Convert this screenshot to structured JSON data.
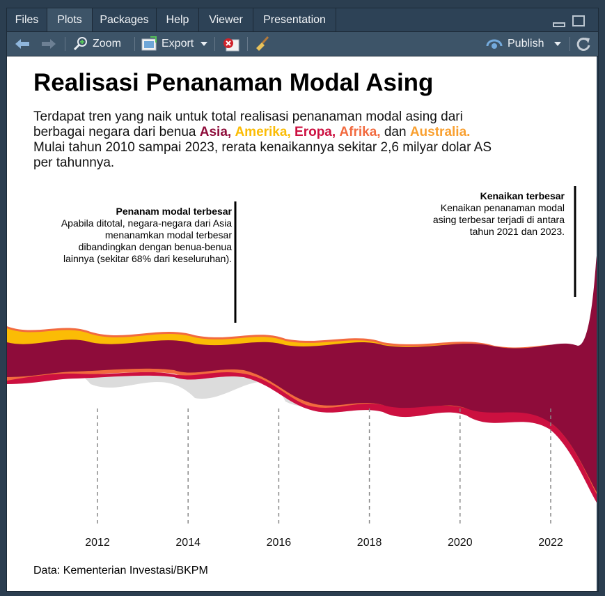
{
  "tabs": [
    "Files",
    "Plots",
    "Packages",
    "Help",
    "Viewer",
    "Presentation"
  ],
  "active_tab": "Plots",
  "toolbar": {
    "zoom": "Zoom",
    "export": "Export",
    "publish": "Publish"
  },
  "icons": [
    "back-arrow-icon",
    "forward-arrow-icon",
    "zoom-icon",
    "export-icon",
    "remove-plot-icon",
    "broom-icon",
    "publish-icon",
    "refresh-icon",
    "minimize-icon",
    "maximize-icon"
  ],
  "plot": {
    "title": "Realisasi Penanaman Modal Asing",
    "subtitle_line1": "Terdapat tren yang naik untuk total realisasi penanaman modal asing dari",
    "subtitle_line2_prefix": "berbagai negara dari benua",
    "continents": [
      "Asia,",
      "Amerika,",
      "Eropa,",
      "Afrika,"
    ],
    "connector": "dan",
    "last_continent": "Australia.",
    "subtitle_line3": "Mulai tahun 2010 sampai 2023, rerata kenaikannya sekitar 2,6 milyar dolar AS",
    "subtitle_line4": "per tahunnya.",
    "annotation_left": {
      "title": "Penanam modal terbesar",
      "lines": [
        "Apabila ditotal, negara-negara dari Asia",
        "menanamkan modal terbesar",
        "dibandingkan dengan benua-benua",
        "lainnya (sekitar 68% dari keseluruhan)."
      ]
    },
    "annotation_right": {
      "title": "Kenaikan terbesar",
      "lines": [
        "Kenaikan penanaman modal",
        "asing terbesar terjadi di antara",
        "tahun 2021 dan 2023."
      ]
    },
    "source": "Data: Kementerian Investasi/BKPM"
  },
  "colors": {
    "asia": "#8e0c3a",
    "amerika": "#fbbc05",
    "eropa": "#cc1040",
    "afrika": "#f26a3f",
    "australia": "#f9a030",
    "other": "#dcdcdc"
  },
  "chart_data": {
    "type": "area",
    "x_ticks": [
      "2012",
      "2014",
      "2016",
      "2018",
      "2020",
      "2022"
    ],
    "x_range": [
      2010,
      2023
    ]
  }
}
